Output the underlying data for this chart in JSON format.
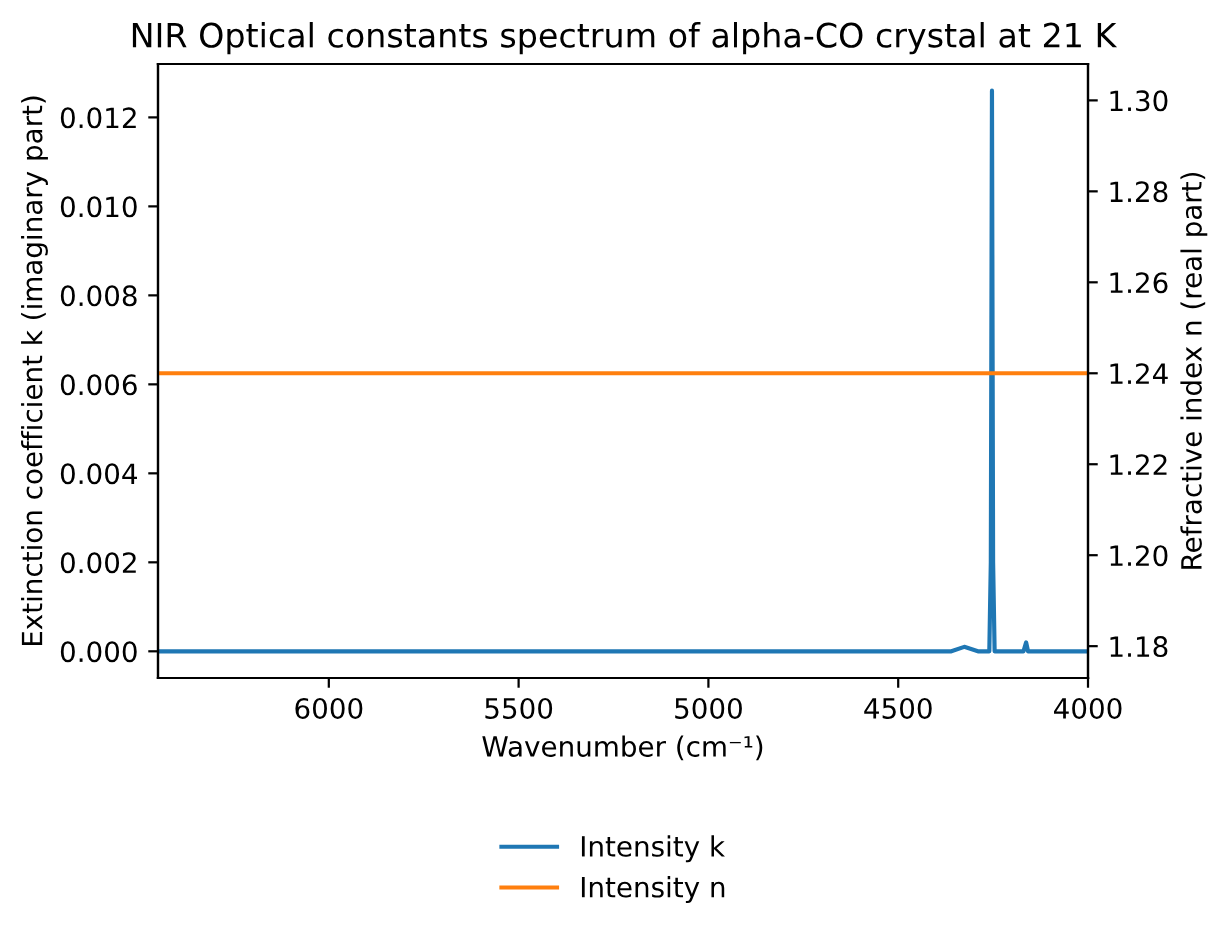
{
  "chart_data": {
    "type": "line",
    "title": "NIR Optical constants spectrum of alpha-CO crystal at 21 K",
    "xlabel": "Wavenumber (cm⁻¹)",
    "ylabel": "Extinction coefficient k (imaginary part)",
    "y2label": "Refractive index n (real part)",
    "series": [
      {
        "name": "Intensity k",
        "color": "#1f77b4",
        "axis": "y",
        "x": [
          6450,
          6000,
          5500,
          5000,
          4500,
          4360,
          4326,
          4290,
          4260,
          4256,
          4253,
          4250,
          4246,
          4200,
          4170,
          4163,
          4158,
          4100,
          4000
        ],
        "values": [
          0,
          0,
          0,
          0,
          0,
          0,
          0.0001,
          0,
          0,
          0.002,
          0.0126,
          0.002,
          0,
          0,
          0,
          0.0002,
          0,
          0,
          0
        ]
      },
      {
        "name": "Intensity n",
        "color": "#ff7f0e",
        "axis": "y2",
        "x": [
          6450,
          4000
        ],
        "values": [
          1.24,
          1.24
        ]
      }
    ],
    "xlim": [
      6450,
      4000
    ],
    "xticks": [
      6000,
      5500,
      5000,
      4500,
      4000
    ],
    "ylim": [
      -0.0006,
      0.0132
    ],
    "yticks": [
      {
        "value": 0,
        "label": "0.000"
      },
      {
        "value": 0.002,
        "label": "0.002"
      },
      {
        "value": 0.004,
        "label": "0.004"
      },
      {
        "value": 0.006,
        "label": "0.006"
      },
      {
        "value": 0.008,
        "label": "0.008"
      },
      {
        "value": 0.01,
        "label": "0.010"
      },
      {
        "value": 0.012,
        "label": "0.012"
      }
    ],
    "y2lim": [
      1.173,
      1.308
    ],
    "y2ticks": [
      1.18,
      {
        "value": 1.2,
        "label": "1.20"
      },
      1.22,
      1.24,
      1.26,
      1.28,
      {
        "value": 1.3,
        "label": "1.30"
      }
    ],
    "legend": "bottom"
  }
}
